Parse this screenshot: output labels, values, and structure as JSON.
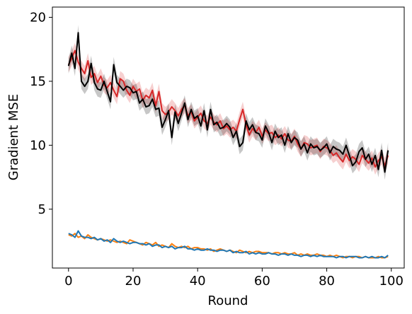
{
  "chart_data": {
    "type": "line",
    "title": "",
    "xlabel": "Round",
    "ylabel": "Gradient MSE",
    "xlim": [
      -5,
      104
    ],
    "ylim": [
      0.4,
      20.8
    ],
    "xticks": [
      0,
      20,
      40,
      60,
      80,
      100
    ],
    "yticks": [
      5,
      10,
      15,
      20
    ],
    "grid": false,
    "legend": "none",
    "x_start": 0,
    "x_step": 1,
    "series": [
      {
        "color": "#d62728",
        "band_halfwidth": 0.6,
        "values": [
          16.3,
          16.8,
          17.4,
          16.5,
          16.0,
          15.6,
          16.6,
          15.3,
          15.6,
          14.9,
          15.4,
          14.7,
          14.5,
          14.9,
          14.3,
          13.8,
          15.2,
          15.0,
          14.3,
          13.9,
          14.6,
          14.2,
          14.4,
          13.5,
          13.9,
          13.7,
          14.3,
          13.1,
          14.2,
          12.7,
          12.4,
          12.6,
          13.0,
          12.7,
          12.3,
          12.8,
          13.1,
          12.3,
          12.6,
          11.9,
          12.2,
          12.5,
          11.9,
          11.7,
          12.2,
          11.8,
          11.6,
          11.9,
          11.3,
          11.5,
          11.2,
          11.4,
          11.1,
          12.0,
          12.8,
          11.6,
          10.8,
          11.3,
          11.0,
          11.4,
          10.7,
          11.2,
          10.9,
          11.0,
          10.6,
          10.8,
          10.5,
          10.9,
          10.4,
          10.3,
          10.7,
          10.1,
          9.7,
          10.2,
          10.1,
          9.8,
          9.9,
          10.0,
          9.5,
          9.9,
          9.8,
          9.6,
          9.2,
          9.4,
          9.0,
          8.7,
          9.3,
          8.8,
          9.1,
          8.9,
          8.5,
          9.2,
          8.9,
          8.6,
          9.0,
          8.3,
          8.8,
          9.1,
          8.4,
          9.2
        ]
      },
      {
        "color": "#000000",
        "band_halfwidth": 0.6,
        "values": [
          16.2,
          17.2,
          16.0,
          18.8,
          15.0,
          14.6,
          15.0,
          16.4,
          14.9,
          14.4,
          14.3,
          15.0,
          14.2,
          13.4,
          16.3,
          14.9,
          14.6,
          14.3,
          14.6,
          14.5,
          14.1,
          14.2,
          13.3,
          13.6,
          13.0,
          13.1,
          13.6,
          12.8,
          12.9,
          11.4,
          12.0,
          12.7,
          10.6,
          12.6,
          11.7,
          12.5,
          13.3,
          12.0,
          12.8,
          12.1,
          12.3,
          11.5,
          12.7,
          11.2,
          12.8,
          11.6,
          11.8,
          11.3,
          11.4,
          11.7,
          11.4,
          10.6,
          11.1,
          9.9,
          10.2,
          11.9,
          11.2,
          11.6,
          11.0,
          10.9,
          10.4,
          11.5,
          11.0,
          10.2,
          11.1,
          10.6,
          10.8,
          10.0,
          10.9,
          10.2,
          10.6,
          10.4,
          9.7,
          10.1,
          9.4,
          10.1,
          9.8,
          9.9,
          9.6,
          9.8,
          10.1,
          9.4,
          9.9,
          9.7,
          9.6,
          9.3,
          10.0,
          9.2,
          8.4,
          8.7,
          9.5,
          9.8,
          8.9,
          9.3,
          8.5,
          9.2,
          8.1,
          9.6,
          7.9,
          9.6
        ]
      },
      {
        "color": "#ff7f0e",
        "band_halfwidth": 0,
        "values": [
          3.0,
          2.9,
          3.1,
          2.8,
          2.9,
          2.7,
          3.0,
          2.8,
          2.7,
          2.6,
          2.7,
          2.6,
          2.5,
          2.6,
          2.5,
          2.4,
          2.5,
          2.4,
          2.3,
          2.6,
          2.5,
          2.4,
          2.3,
          2.2,
          2.4,
          2.3,
          2.2,
          2.4,
          2.1,
          2.2,
          2.1,
          2.0,
          2.3,
          2.1,
          2.0,
          2.1,
          2.0,
          2.1,
          1.9,
          2.0,
          2.0,
          1.9,
          1.9,
          1.8,
          1.9,
          1.7,
          1.8,
          1.9,
          1.8,
          1.7,
          1.8,
          1.7,
          1.6,
          1.8,
          1.7,
          1.6,
          1.7,
          1.6,
          1.7,
          1.7,
          1.6,
          1.6,
          1.6,
          1.5,
          1.6,
          1.6,
          1.5,
          1.6,
          1.5,
          1.5,
          1.6,
          1.4,
          1.5,
          1.4,
          1.5,
          1.4,
          1.4,
          1.5,
          1.4,
          1.4,
          1.3,
          1.4,
          1.3,
          1.4,
          1.3,
          1.2,
          1.3,
          1.3,
          1.2,
          1.3,
          1.3,
          1.2,
          1.3,
          1.2,
          1.2,
          1.2,
          1.3,
          1.2,
          1.2,
          1.3
        ]
      },
      {
        "color": "#1f77b4",
        "band_halfwidth": 0,
        "values": [
          3.1,
          3.0,
          2.8,
          3.3,
          2.9,
          2.8,
          2.8,
          2.7,
          2.8,
          2.6,
          2.7,
          2.5,
          2.6,
          2.4,
          2.7,
          2.5,
          2.4,
          2.5,
          2.4,
          2.3,
          2.4,
          2.4,
          2.3,
          2.3,
          2.2,
          2.3,
          2.1,
          2.2,
          2.2,
          2.0,
          2.1,
          2.0,
          2.1,
          1.9,
          2.0,
          2.0,
          2.1,
          1.9,
          1.9,
          1.8,
          1.9,
          1.8,
          1.8,
          1.9,
          1.8,
          1.8,
          1.7,
          1.8,
          1.8,
          1.7,
          1.8,
          1.6,
          1.7,
          1.6,
          1.6,
          1.7,
          1.5,
          1.6,
          1.5,
          1.6,
          1.5,
          1.5,
          1.6,
          1.5,
          1.5,
          1.4,
          1.5,
          1.5,
          1.4,
          1.5,
          1.4,
          1.4,
          1.3,
          1.4,
          1.4,
          1.3,
          1.4,
          1.3,
          1.4,
          1.3,
          1.3,
          1.3,
          1.3,
          1.2,
          1.3,
          1.3,
          1.2,
          1.3,
          1.3,
          1.3,
          1.2,
          1.2,
          1.3,
          1.2,
          1.3,
          1.2,
          1.2,
          1.3,
          1.2,
          1.4
        ]
      }
    ]
  }
}
